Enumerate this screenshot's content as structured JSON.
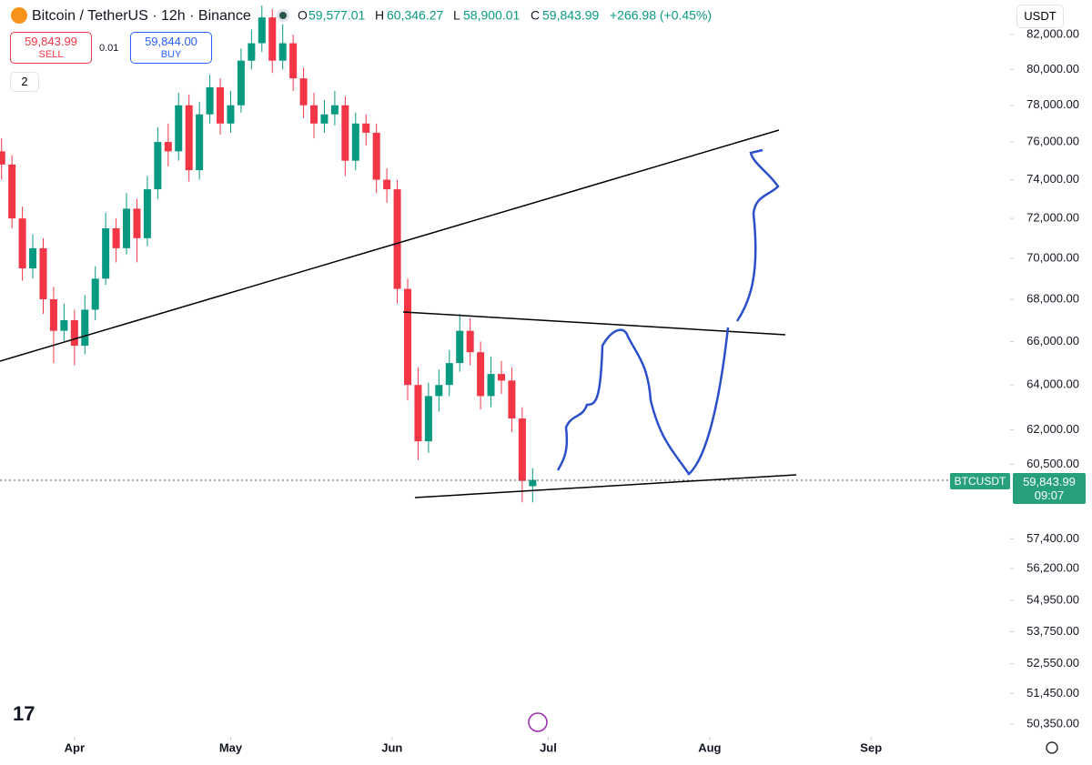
{
  "header": {
    "symbol": "Bitcoin / TetherUS · 12h · Binance",
    "open_label": "O",
    "open": "59,577.01",
    "high_label": "H",
    "high": "60,346.27",
    "low_label": "L",
    "low": "58,900.01",
    "close_label": "C",
    "close": "59,843.99",
    "change": "+266.98 (+0.45%)",
    "sell_price": "59,843.99",
    "sell": "SELL",
    "spread": "0.01",
    "buy_price": "59,844.00",
    "buy": "BUY",
    "indicators": "2",
    "currency": "USDT",
    "logo": "17"
  },
  "price_tag": {
    "symbol": "BTCUSDT",
    "price": "59,843.99",
    "countdown": "09:07"
  },
  "chart_data": {
    "type": "candlestick",
    "log_scale": true,
    "up_color": "#089981",
    "down_color": "#f23645",
    "xlim": [
      16.7,
      210.7
    ],
    "xticks": [
      {
        "value": 31,
        "label": "Apr"
      },
      {
        "value": 61,
        "label": "May"
      },
      {
        "value": 92,
        "label": "Jun"
      },
      {
        "value": 122,
        "label": "Jul"
      },
      {
        "value": 153,
        "label": "Aug"
      },
      {
        "value": 184,
        "label": "Sep"
      }
    ],
    "ylim": [
      49900,
      84030
    ],
    "yticks": [
      {
        "value": 82000,
        "label": "82,000.00"
      },
      {
        "value": 80000,
        "label": "80,000.00"
      },
      {
        "value": 78000,
        "label": "78,000.00"
      },
      {
        "value": 76000,
        "label": "76,000.00"
      },
      {
        "value": 74000,
        "label": "74,000.00"
      },
      {
        "value": 72000,
        "label": "72,000.00"
      },
      {
        "value": 70000,
        "label": "70,000.00"
      },
      {
        "value": 68000,
        "label": "68,000.00"
      },
      {
        "value": 66000,
        "label": "66,000.00"
      },
      {
        "value": 64000,
        "label": "64,000.00"
      },
      {
        "value": 62000,
        "label": "62,000.00"
      },
      {
        "value": 60500,
        "label": "60,500.00"
      },
      {
        "value": 57400,
        "label": "57,400.00"
      },
      {
        "value": 56200,
        "label": "56,200.00"
      },
      {
        "value": 54950,
        "label": "54,950.00"
      },
      {
        "value": 53750,
        "label": "53,750.00"
      },
      {
        "value": 52550,
        "label": "52,550.00"
      },
      {
        "value": 51450,
        "label": "51,450.00"
      },
      {
        "value": 50350,
        "label": "50,350.00"
      }
    ],
    "x": [
      17,
      19,
      21,
      23,
      25,
      27,
      29,
      31,
      33,
      35,
      37,
      39,
      41,
      43,
      45,
      47,
      49,
      51,
      53,
      55,
      57,
      59,
      61,
      63,
      65,
      67,
      69,
      71,
      73,
      75,
      77,
      79,
      81,
      83,
      85,
      87,
      89,
      91,
      93,
      95,
      97,
      99,
      101,
      103,
      105,
      107,
      109,
      111,
      113,
      115,
      117,
      119
    ],
    "open": [
      75500,
      74800,
      72000,
      69500,
      70500,
      68000,
      66500,
      67000,
      65800,
      67500,
      69000,
      71500,
      70500,
      72500,
      71000,
      73500,
      76000,
      75500,
      78000,
      74500,
      77500,
      79000,
      77000,
      78000,
      80500,
      81500,
      83000,
      80500,
      81500,
      79500,
      78000,
      77000,
      77500,
      78000,
      75000,
      77000,
      76500,
      74000,
      73500,
      68500,
      64000,
      61500,
      63500,
      64000,
      65000,
      66500,
      65500,
      63500,
      64500,
      64200,
      62500,
      59577.01
    ],
    "high": [
      76200,
      75300,
      72600,
      71200,
      71000,
      68600,
      67800,
      67500,
      68200,
      69600,
      72300,
      72000,
      73300,
      73000,
      74200,
      76800,
      77000,
      78700,
      78600,
      78200,
      79700,
      79500,
      78800,
      81200,
      82300,
      83700,
      83500,
      82600,
      82000,
      80100,
      78700,
      78300,
      78800,
      78500,
      77600,
      77500,
      77000,
      74600,
      74000,
      69000,
      64800,
      64100,
      64700,
      65600,
      67300,
      67100,
      66000,
      65300,
      65100,
      64800,
      63000,
      60346.27
    ],
    "low": [
      74000,
      71500,
      68900,
      69000,
      67300,
      65000,
      66000,
      64900,
      65400,
      67000,
      68700,
      69800,
      70200,
      69800,
      70600,
      73000,
      74700,
      75000,
      73900,
      74000,
      77000,
      76400,
      76500,
      77600,
      80000,
      81000,
      79800,
      80000,
      78800,
      77300,
      76200,
      76500,
      76900,
      74200,
      74500,
      75800,
      73300,
      72800,
      67800,
      63300,
      60700,
      61000,
      62800,
      63500,
      64600,
      64900,
      62900,
      63000,
      63600,
      61900,
      58900,
      58900.01
    ],
    "close": [
      74800,
      72000,
      69500,
      70500,
      68000,
      66500,
      67000,
      65800,
      67500,
      69000,
      71500,
      70500,
      72500,
      71000,
      73500,
      76000,
      75500,
      78000,
      74500,
      77500,
      79000,
      77000,
      78000,
      80500,
      81500,
      83000,
      80500,
      81500,
      79500,
      78000,
      77000,
      77500,
      78000,
      75000,
      77000,
      76500,
      74000,
      73500,
      68500,
      64000,
      61500,
      63500,
      64000,
      65000,
      66500,
      65500,
      63500,
      64500,
      64200,
      62500,
      59800,
      59843.99
    ]
  }
}
